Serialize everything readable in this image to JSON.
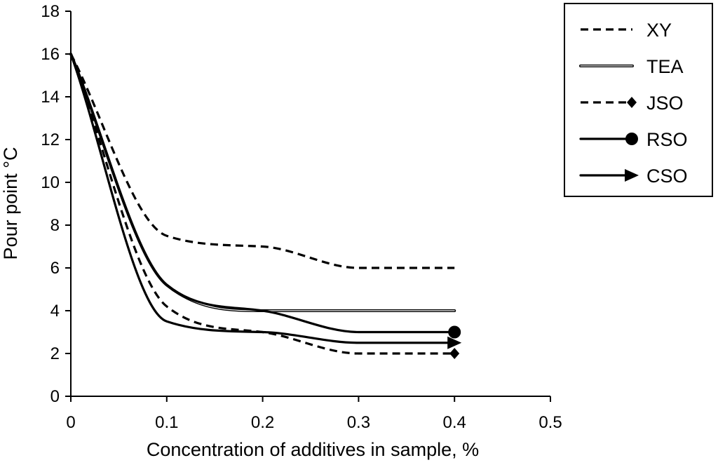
{
  "chart_data": {
    "type": "line",
    "title": "",
    "xlabel": "Concentration of additives in sample, %",
    "ylabel": "Pour point °C",
    "xlim": [
      0,
      0.5
    ],
    "ylim": [
      0,
      18
    ],
    "x_ticks": [
      0,
      0.1,
      0.2,
      0.3,
      0.4,
      0.5
    ],
    "x_tick_labels": [
      "0",
      "0.1",
      "0.2",
      "0.3",
      "0.4",
      "0.5"
    ],
    "y_ticks": [
      0,
      2,
      4,
      6,
      8,
      10,
      12,
      14,
      16,
      18
    ],
    "y_tick_labels": [
      "0",
      "2",
      "4",
      "6",
      "8",
      "10",
      "12",
      "14",
      "16",
      "18"
    ],
    "grid": false,
    "legend_position": "top-right",
    "x": [
      0,
      0.1,
      0.2,
      0.3,
      0.4
    ],
    "series": [
      {
        "name": "XY",
        "style": "dashed",
        "marker": "none",
        "values": [
          16,
          7.5,
          7,
          6,
          6
        ]
      },
      {
        "name": "TEA",
        "style": "double",
        "marker": "none",
        "values": [
          16,
          5.2,
          4,
          4,
          4
        ]
      },
      {
        "name": "JSO",
        "style": "dashed",
        "marker": "diamond",
        "values": [
          16,
          4.2,
          3,
          2,
          2
        ]
      },
      {
        "name": "RSO",
        "style": "solid",
        "marker": "circle",
        "values": [
          16,
          5.2,
          4,
          3,
          3
        ]
      },
      {
        "name": "CSO",
        "style": "solid",
        "marker": "arrow",
        "values": [
          16,
          3.5,
          3,
          2.5,
          2.5
        ]
      }
    ]
  }
}
